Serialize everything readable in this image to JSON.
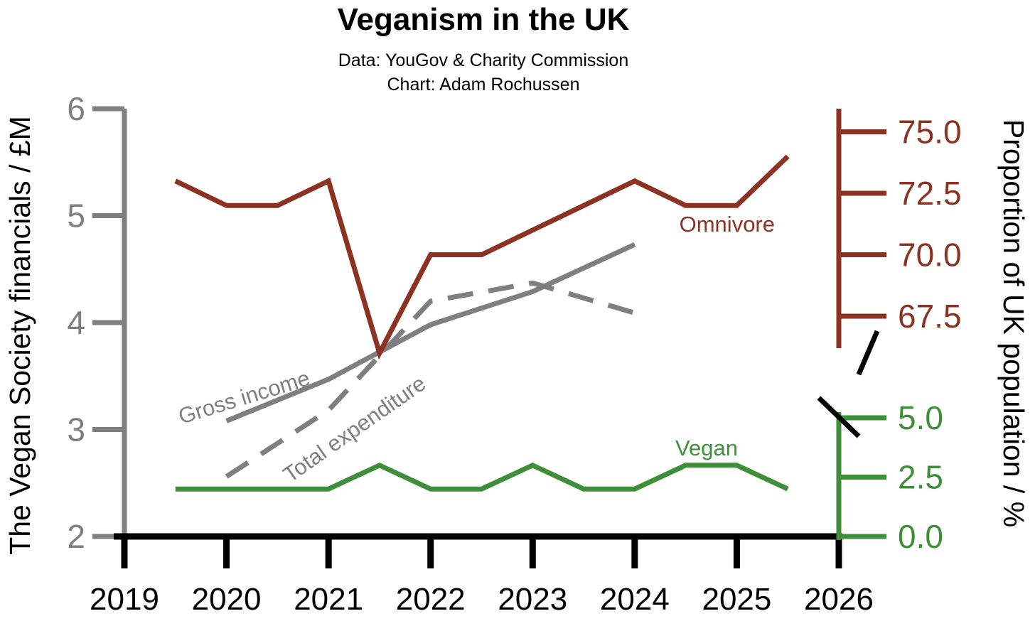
{
  "chart_data": {
    "type": "line",
    "title": "Veganism in the UK",
    "subtitle_lines": [
      "Data: YouGov & Charity Commission",
      "Chart: Adam Rochussen"
    ],
    "xlabel": "",
    "x_ticks": [
      "2019",
      "2020",
      "2021",
      "2022",
      "2023",
      "2024",
      "2025",
      "2026"
    ],
    "xlim": [
      2019,
      2026
    ],
    "left_axis": {
      "label": "The Vegan Society financials / £M",
      "ylim": [
        2,
        6
      ],
      "ticks": [
        "2",
        "3",
        "4",
        "5",
        "6"
      ],
      "color": "#7f7f7f"
    },
    "right_axis": {
      "label": "Proportion of UK population / %",
      "broken": true,
      "upper_ticks": [
        "67.5",
        "70.0",
        "72.5",
        "75.0"
      ],
      "lower_ticks": [
        "0.0",
        "2.5",
        "5.0"
      ],
      "upper_color": "#8b3222",
      "lower_color": "#3f8f3a"
    },
    "grid": false,
    "series": [
      {
        "name": "Gross income",
        "axis": "left",
        "style": "solid",
        "color": "#7f7f7f",
        "x": [
          2020,
          2021,
          2022,
          2023,
          2024
        ],
        "values": [
          3.08,
          3.47,
          3.98,
          4.29,
          4.73
        ]
      },
      {
        "name": "Total expenditure",
        "axis": "left",
        "style": "dashed",
        "color": "#7f7f7f",
        "x": [
          2020,
          2021,
          2022,
          2023,
          2024
        ],
        "values": [
          2.56,
          3.18,
          4.2,
          4.37,
          4.09
        ]
      },
      {
        "name": "Omnivore",
        "axis": "right",
        "style": "solid",
        "color": "#8b3222",
        "x": [
          2019.5,
          2020,
          2020.5,
          2021,
          2021.5,
          2022,
          2022.5,
          2023,
          2023.5,
          2024,
          2024.5,
          2025,
          2025.5
        ],
        "values": [
          73,
          72,
          72,
          73,
          66,
          70,
          70,
          71,
          72,
          73,
          72,
          72,
          74
        ]
      },
      {
        "name": "Vegan",
        "axis": "right",
        "style": "solid",
        "color": "#3f8f3a",
        "x": [
          2019.5,
          2020,
          2020.5,
          2021,
          2021.5,
          2022,
          2022.5,
          2023,
          2023.5,
          2024,
          2024.5,
          2025,
          2025.5
        ],
        "values": [
          2,
          2,
          2,
          2,
          3,
          2,
          2,
          3,
          2,
          2,
          3,
          3,
          2
        ]
      }
    ]
  }
}
